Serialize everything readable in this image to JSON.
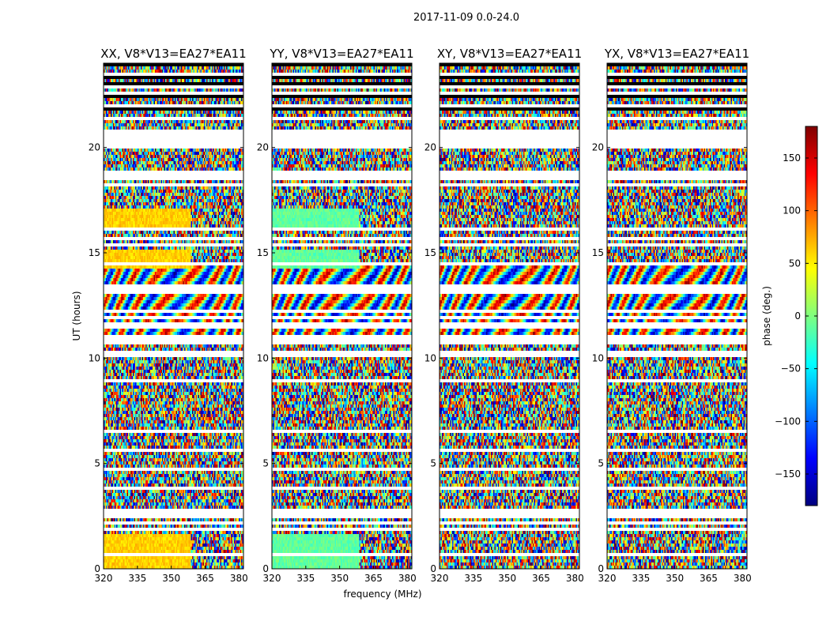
{
  "figure_title": "2017-11-09 0.0-24.0",
  "shared_xlabel": "frequency (MHz)",
  "shared_ylabel": "UT (hours)",
  "colorbar": {
    "label": "phase (deg.)",
    "range": [
      -180,
      180
    ],
    "ticks": [
      150,
      100,
      50,
      0,
      -50,
      -100,
      -150
    ],
    "tick_labels": [
      "150",
      "100",
      "50",
      "0",
      "−50",
      "−100",
      "−150"
    ],
    "colormap": "jet",
    "colors": [
      "#00007f",
      "#0000ff",
      "#007fff",
      "#00ffff",
      "#7fff7f",
      "#ffff00",
      "#ff7f00",
      "#ff0000",
      "#7f0000"
    ]
  },
  "chart_data": [
    {
      "type": "heatmap",
      "title": "XX, V8*V13=EA27*EA11",
      "xlabel": "frequency (MHz)",
      "ylabel": "UT (hours)",
      "xlim": [
        320,
        382
      ],
      "ylim": [
        0,
        24
      ],
      "xticks": [
        320,
        335,
        350,
        365,
        380
      ],
      "yticks": [
        0,
        5,
        10,
        15,
        20
      ],
      "value": "phase (deg.)"
    },
    {
      "type": "heatmap",
      "title": "YY, V8*V13=EA27*EA11",
      "xlabel": "frequency (MHz)",
      "ylabel": "",
      "xlim": [
        320,
        382
      ],
      "ylim": [
        0,
        24
      ],
      "xticks": [
        320,
        335,
        350,
        365,
        380
      ],
      "yticks": [
        0,
        5,
        10,
        15,
        20
      ],
      "value": "phase (deg.)"
    },
    {
      "type": "heatmap",
      "title": "XY, V8*V13=EA27*EA11",
      "xlabel": "frequency (MHz)",
      "ylabel": "",
      "xlim": [
        320,
        382
      ],
      "ylim": [
        0,
        24
      ],
      "xticks": [
        320,
        335,
        350,
        365,
        380
      ],
      "yticks": [
        0,
        5,
        10,
        15,
        20
      ],
      "value": "phase (deg.)"
    },
    {
      "type": "heatmap",
      "title": "YX, V8*V13=EA27*EA11",
      "xlabel": "frequency (MHz)",
      "ylabel": "",
      "xlim": [
        320,
        382
      ],
      "ylim": [
        0,
        24
      ],
      "xticks": [
        320,
        335,
        350,
        365,
        380
      ],
      "yticks": [
        0,
        5,
        10,
        15,
        20
      ],
      "value": "phase (deg.)"
    }
  ]
}
